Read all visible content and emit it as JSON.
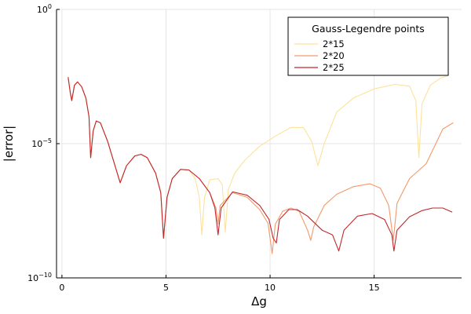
{
  "chart_data": {
    "type": "line",
    "title": "",
    "xlabel": "Δg",
    "ylabel": "|error|",
    "yscale": "log",
    "xlim": [
      -0.26,
      19.2
    ],
    "ylim": [
      1e-10,
      1
    ],
    "x_ticks": [
      {
        "value": 0,
        "label": "0"
      },
      {
        "value": 5,
        "label": "5"
      },
      {
        "value": 10,
        "label": "10"
      },
      {
        "value": 15,
        "label": "15"
      }
    ],
    "y_ticks": [
      {
        "value": 1e-10,
        "base": "10",
        "exp": "−10"
      },
      {
        "value": 1e-05,
        "base": "10",
        "exp": "−5"
      },
      {
        "value": 1,
        "base": "10",
        "exp": "0"
      }
    ],
    "grid": true,
    "legend": {
      "title": "Gauss-Legendre points",
      "position": "top-right"
    },
    "series": [
      {
        "name": "2*15",
        "color": "#fde29a",
        "points": [
          [
            0.3,
            0.003
          ],
          [
            0.4,
            0.0008
          ],
          [
            0.47,
            0.0004
          ],
          [
            0.6,
            0.0015
          ],
          [
            0.75,
            0.002
          ],
          [
            0.95,
            0.0013
          ],
          [
            1.15,
            0.0005
          ],
          [
            1.3,
            0.0001
          ],
          [
            1.38,
            3e-06
          ],
          [
            1.5,
            3e-05
          ],
          [
            1.65,
            7e-05
          ],
          [
            1.85,
            6e-05
          ],
          [
            2.2,
            1.2e-05
          ],
          [
            2.5,
            2e-06
          ],
          [
            2.8,
            3.5e-07
          ],
          [
            3.1,
            1.5e-06
          ],
          [
            3.5,
            3.5e-06
          ],
          [
            3.8,
            4e-06
          ],
          [
            4.1,
            3e-06
          ],
          [
            4.5,
            8e-07
          ],
          [
            4.75,
            1.5e-07
          ],
          [
            4.88,
            3e-09
          ],
          [
            5.05,
            1e-07
          ],
          [
            5.3,
            5e-07
          ],
          [
            5.7,
            1.1e-06
          ],
          [
            6.1,
            1.05e-06
          ],
          [
            6.4,
            5e-07
          ],
          [
            6.6,
            1e-07
          ],
          [
            6.72,
            4e-09
          ],
          [
            6.85,
            1e-07
          ],
          [
            7.1,
            4.5e-07
          ],
          [
            7.5,
            5e-07
          ],
          [
            7.7,
            3e-07
          ],
          [
            7.85,
            5e-09
          ],
          [
            8.0,
            2e-07
          ],
          [
            8.3,
            8e-07
          ],
          [
            8.8,
            2.5e-06
          ],
          [
            9.5,
            8e-06
          ],
          [
            10.3,
            2e-05
          ],
          [
            11.0,
            4e-05
          ],
          [
            11.6,
            4e-05
          ],
          [
            12.0,
            1.2e-05
          ],
          [
            12.3,
            1.5e-06
          ],
          [
            12.6,
            1e-05
          ],
          [
            13.2,
            0.00015
          ],
          [
            14.0,
            0.0005
          ],
          [
            15.0,
            0.0011
          ],
          [
            16.0,
            0.0016
          ],
          [
            16.7,
            0.0014
          ],
          [
            17.0,
            0.0004
          ],
          [
            17.15,
            3e-06
          ],
          [
            17.3,
            0.0003
          ],
          [
            17.7,
            0.0015
          ],
          [
            18.2,
            0.0028
          ],
          [
            18.5,
            0.0033
          ]
        ]
      },
      {
        "name": "2*20",
        "color": "#f3996a",
        "points": [
          [
            0.3,
            0.003
          ],
          [
            0.4,
            0.0008
          ],
          [
            0.47,
            0.0004
          ],
          [
            0.6,
            0.0015
          ],
          [
            0.75,
            0.002
          ],
          [
            0.95,
            0.0013
          ],
          [
            1.15,
            0.0005
          ],
          [
            1.3,
            0.0001
          ],
          [
            1.38,
            3e-06
          ],
          [
            1.5,
            3e-05
          ],
          [
            1.65,
            7e-05
          ],
          [
            1.85,
            6e-05
          ],
          [
            2.2,
            1.2e-05
          ],
          [
            2.5,
            2e-06
          ],
          [
            2.8,
            3.5e-07
          ],
          [
            3.1,
            1.5e-06
          ],
          [
            3.5,
            3.5e-06
          ],
          [
            3.8,
            4e-06
          ],
          [
            4.1,
            3e-06
          ],
          [
            4.5,
            8e-07
          ],
          [
            4.75,
            1.5e-07
          ],
          [
            4.88,
            3e-09
          ],
          [
            5.05,
            1e-07
          ],
          [
            5.3,
            5e-07
          ],
          [
            5.7,
            1.1e-06
          ],
          [
            6.1,
            1.05e-06
          ],
          [
            6.6,
            5e-07
          ],
          [
            7.1,
            1.5e-07
          ],
          [
            7.4,
            4e-08
          ],
          [
            7.5,
            1e-08
          ],
          [
            7.6,
            5e-08
          ],
          [
            8.2,
            1.5e-07
          ],
          [
            8.9,
            1e-07
          ],
          [
            9.5,
            3.5e-08
          ],
          [
            9.9,
            1.1e-08
          ],
          [
            10.1,
            8e-10
          ],
          [
            10.25,
            1e-08
          ],
          [
            10.6,
            3e-08
          ],
          [
            11.0,
            4e-08
          ],
          [
            11.4,
            3e-08
          ],
          [
            11.8,
            6e-09
          ],
          [
            11.95,
            2.5e-09
          ],
          [
            12.1,
            8e-09
          ],
          [
            12.6,
            5e-08
          ],
          [
            13.2,
            1.3e-07
          ],
          [
            14.0,
            2.5e-07
          ],
          [
            14.8,
            3.2e-07
          ],
          [
            15.3,
            2.2e-07
          ],
          [
            15.7,
            5e-08
          ],
          [
            15.92,
            2.5e-09
          ],
          [
            16.1,
            6e-08
          ],
          [
            16.7,
            5e-07
          ],
          [
            17.5,
            1.8e-06
          ],
          [
            18.3,
            3.5e-05
          ],
          [
            18.8,
            6e-05
          ]
        ]
      },
      {
        "name": "2*25",
        "color": "#c0282d",
        "points": [
          [
            0.3,
            0.003
          ],
          [
            0.4,
            0.0008
          ],
          [
            0.47,
            0.0004
          ],
          [
            0.6,
            0.0015
          ],
          [
            0.75,
            0.002
          ],
          [
            0.95,
            0.0013
          ],
          [
            1.15,
            0.0005
          ],
          [
            1.3,
            0.0001
          ],
          [
            1.38,
            3e-06
          ],
          [
            1.5,
            3e-05
          ],
          [
            1.65,
            7e-05
          ],
          [
            1.85,
            6e-05
          ],
          [
            2.2,
            1.2e-05
          ],
          [
            2.5,
            2e-06
          ],
          [
            2.8,
            3.5e-07
          ],
          [
            3.1,
            1.5e-06
          ],
          [
            3.5,
            3.5e-06
          ],
          [
            3.8,
            4e-06
          ],
          [
            4.1,
            3e-06
          ],
          [
            4.5,
            8e-07
          ],
          [
            4.75,
            1.5e-07
          ],
          [
            4.88,
            3e-09
          ],
          [
            5.05,
            1e-07
          ],
          [
            5.3,
            5e-07
          ],
          [
            5.7,
            1.1e-06
          ],
          [
            6.1,
            1.05e-06
          ],
          [
            6.6,
            5e-07
          ],
          [
            7.1,
            1.5e-07
          ],
          [
            7.35,
            4e-08
          ],
          [
            7.5,
            4e-09
          ],
          [
            7.65,
            4e-08
          ],
          [
            8.2,
            1.6e-07
          ],
          [
            8.9,
            1.2e-07
          ],
          [
            9.5,
            5e-08
          ],
          [
            9.95,
            1.5e-08
          ],
          [
            10.15,
            3e-09
          ],
          [
            10.3,
            2e-09
          ],
          [
            10.45,
            1.5e-08
          ],
          [
            10.9,
            3.5e-08
          ],
          [
            11.3,
            3.5e-08
          ],
          [
            11.8,
            2e-08
          ],
          [
            12.5,
            6e-09
          ],
          [
            13.0,
            4e-09
          ],
          [
            13.3,
            1e-09
          ],
          [
            13.55,
            6e-09
          ],
          [
            14.2,
            2e-08
          ],
          [
            14.9,
            2.5e-08
          ],
          [
            15.5,
            1.5e-08
          ],
          [
            15.85,
            4e-09
          ],
          [
            15.95,
            1e-09
          ],
          [
            16.1,
            6e-09
          ],
          [
            16.7,
            1.9e-08
          ],
          [
            17.3,
            3.2e-08
          ],
          [
            17.8,
            4e-08
          ],
          [
            18.3,
            4e-08
          ],
          [
            18.75,
            2.8e-08
          ]
        ]
      }
    ]
  }
}
